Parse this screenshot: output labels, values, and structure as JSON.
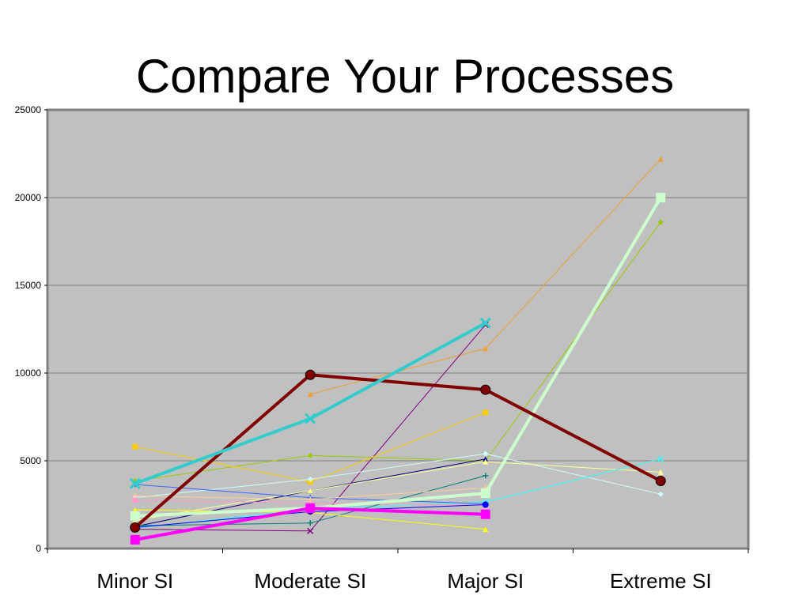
{
  "title": "Compare Your Processes",
  "chart_data": {
    "type": "line",
    "categories": [
      "Minor SI",
      "Moderate SI",
      "Major SI",
      "Extreme SI"
    ],
    "ylim": [
      0,
      25000
    ],
    "yticks": [
      0,
      5000,
      10000,
      15000,
      20000,
      25000
    ],
    "grid": true,
    "plot_background": "#c0c0c0",
    "series": [
      {
        "color": "#f0a030",
        "marker": "triangle",
        "width": 1,
        "values": [
          null,
          8800,
          11400,
          22200
        ]
      },
      {
        "color": "#99cc00",
        "marker": "diamond",
        "width": 1,
        "values": [
          3850,
          5300,
          5000,
          18600
        ]
      },
      {
        "color": "#ccffcc",
        "marker": "square",
        "width": 4,
        "values": [
          1850,
          2300,
          3150,
          20000
        ]
      },
      {
        "color": "#800000",
        "marker": "circle",
        "width": 4,
        "values": [
          1200,
          9900,
          9050,
          3850
        ]
      },
      {
        "color": "#33cccc",
        "marker": "x",
        "width": 4,
        "values": [
          3700,
          7400,
          12850,
          null
        ]
      },
      {
        "color": "#800080",
        "marker": "x",
        "width": 1,
        "values": [
          1100,
          1000,
          12750,
          null
        ]
      },
      {
        "color": "#ffcc00",
        "marker": "square",
        "width": 1,
        "values": [
          5800,
          3800,
          7750,
          null
        ]
      },
      {
        "color": "#000080",
        "marker": "triangle",
        "width": 1,
        "values": [
          1250,
          3300,
          5100,
          null
        ]
      },
      {
        "color": "#ccffff",
        "marker": "diamond",
        "width": 1,
        "values": [
          2900,
          3950,
          5400,
          3100
        ]
      },
      {
        "color": "#ffff99",
        "marker": "triangle",
        "width": 1,
        "values": [
          1600,
          3300,
          4950,
          4350
        ]
      },
      {
        "color": "#33ffff",
        "marker": "x",
        "width": 1,
        "values": [
          1150,
          2250,
          2650,
          5100
        ]
      },
      {
        "color": "#008080",
        "marker": "plus",
        "width": 1,
        "values": [
          1300,
          1450,
          4150,
          null
        ]
      },
      {
        "color": "#3366ff",
        "marker": "plus",
        "width": 1,
        "values": [
          3650,
          2900,
          2550,
          null
        ]
      },
      {
        "color": "#ff00ff",
        "marker": "square",
        "width": 4,
        "values": [
          500,
          2300,
          1950,
          null
        ]
      },
      {
        "color": "#ff99cc",
        "marker": "square",
        "width": 1,
        "values": [
          2750,
          2600,
          2450,
          null
        ]
      },
      {
        "color": "#ffcc99",
        "marker": "plus",
        "width": 1,
        "values": [
          3000,
          2800,
          3450,
          null
        ]
      },
      {
        "color": "#ffff00",
        "marker": "triangle",
        "width": 1,
        "values": [
          2200,
          2050,
          1100,
          null
        ]
      },
      {
        "color": "#0000ff",
        "marker": "circle",
        "width": 1,
        "values": [
          1200,
          2100,
          2500,
          null
        ]
      }
    ]
  }
}
